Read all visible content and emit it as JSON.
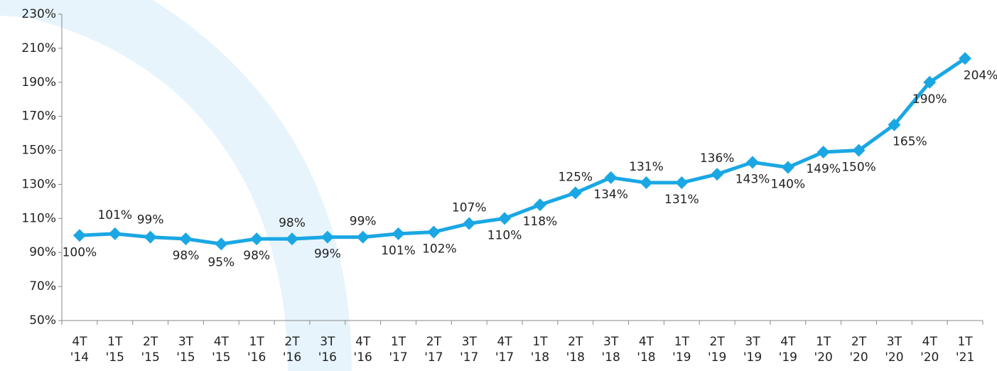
{
  "chart_data": {
    "type": "line",
    "categories": [
      "4T '14",
      "1T '15",
      "2T '15",
      "3T '15",
      "4T '15",
      "1T '16",
      "2T '16",
      "3T '16",
      "4T '16",
      "1T '17",
      "2T '17",
      "3T '17",
      "4T '17",
      "1T '18",
      "2T '18",
      "3T '18",
      "4T '18",
      "1T '19",
      "2T '19",
      "3T '19",
      "4T '19",
      "1T '20",
      "2T '20",
      "3T '20",
      "4T '20",
      "1T '21"
    ],
    "series": [
      {
        "color": "#1aa7e4",
        "values": [
          100,
          101,
          99,
          98,
          95,
          98,
          98,
          99,
          99,
          101,
          102,
          107,
          110,
          118,
          125,
          134,
          131,
          131,
          136,
          143,
          140,
          149,
          150,
          165,
          190,
          204
        ],
        "value_labels": [
          "100%",
          "101%",
          "99%",
          "98%",
          "95%",
          "98%",
          "98%",
          "99%",
          "99%",
          "101%",
          "102%",
          "107%",
          "110%",
          "118%",
          "125%",
          "134%",
          "131%",
          "131%",
          "136%",
          "143%",
          "140%",
          "149%",
          "150%",
          "165%",
          "190%",
          "204%"
        ]
      }
    ],
    "ylim": [
      50,
      230
    ],
    "yticks": [
      {
        "value": 50,
        "label": "50%"
      },
      {
        "value": 70,
        "label": "70%"
      },
      {
        "value": 90,
        "label": "90%"
      },
      {
        "value": 110,
        "label": "110%"
      },
      {
        "value": 130,
        "label": "130%"
      },
      {
        "value": 150,
        "label": "150%"
      },
      {
        "value": 170,
        "label": "170%"
      },
      {
        "value": 190,
        "label": "190%"
      },
      {
        "value": 210,
        "label": "210%"
      },
      {
        "value": 230,
        "label": "230%"
      }
    ]
  }
}
